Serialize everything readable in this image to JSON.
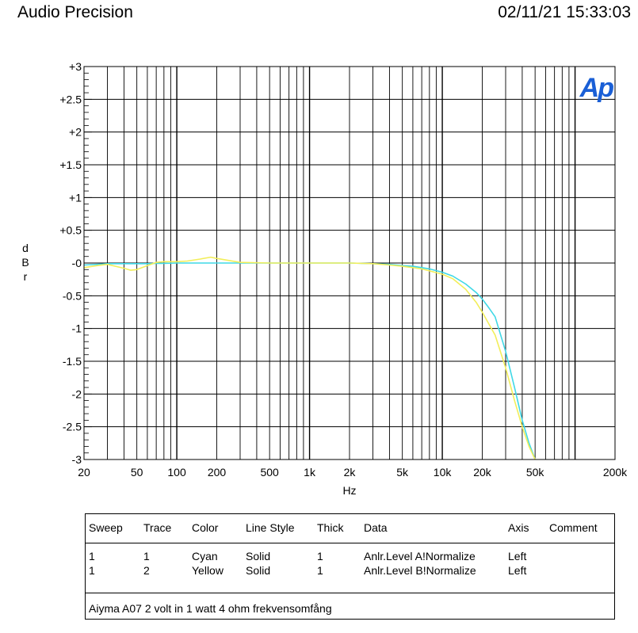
{
  "header": {
    "app_title": "Audio Precision",
    "timestamp": "02/11/21 15:33:03"
  },
  "logo_text": "Ap",
  "chart_data": {
    "type": "line",
    "xlabel": "Hz",
    "ylabel": "dBr",
    "x_scale": "log",
    "xlim": [
      20,
      200000
    ],
    "ylim": [
      -3,
      3
    ],
    "grid": true,
    "x_ticks": [
      {
        "value": 20,
        "label": "20"
      },
      {
        "value": 50,
        "label": "50"
      },
      {
        "value": 100,
        "label": "100"
      },
      {
        "value": 200,
        "label": "200"
      },
      {
        "value": 500,
        "label": "500"
      },
      {
        "value": 1000,
        "label": "1k"
      },
      {
        "value": 2000,
        "label": "2k"
      },
      {
        "value": 5000,
        "label": "5k"
      },
      {
        "value": 10000,
        "label": "10k"
      },
      {
        "value": 20000,
        "label": "20k"
      },
      {
        "value": 50000,
        "label": "50k"
      },
      {
        "value": 200000,
        "label": "200k"
      }
    ],
    "y_ticks": [
      {
        "value": 3,
        "label": "+3"
      },
      {
        "value": 2.5,
        "label": "+2.5"
      },
      {
        "value": 2,
        "label": "+2"
      },
      {
        "value": 1.5,
        "label": "+1.5"
      },
      {
        "value": 1,
        "label": "+1"
      },
      {
        "value": 0.5,
        "label": "+0.5"
      },
      {
        "value": 0,
        "label": "-0"
      },
      {
        "value": -0.5,
        "label": "-0.5"
      },
      {
        "value": -1,
        "label": "-1"
      },
      {
        "value": -1.5,
        "label": "-1.5"
      },
      {
        "value": -2,
        "label": "-2"
      },
      {
        "value": -2.5,
        "label": "-2.5"
      },
      {
        "value": -3,
        "label": "-3"
      }
    ],
    "series": [
      {
        "color": "#3FD8E6",
        "x": [
          20,
          25,
          30,
          40,
          50,
          60,
          70,
          80,
          100,
          150,
          200,
          300,
          500,
          1000,
          2000,
          3000,
          4000,
          5000,
          6000,
          7000,
          8000,
          10000,
          12000,
          15000,
          18000,
          20000,
          22000,
          25000,
          30000,
          35000,
          40000,
          45000,
          50000
        ],
        "y": [
          -0.03,
          -0.02,
          -0.01,
          -0.01,
          -0.01,
          -0.01,
          -0.005,
          -0.005,
          0,
          0,
          0,
          0,
          0,
          0,
          0,
          -0.01,
          -0.02,
          -0.04,
          -0.05,
          -0.07,
          -0.09,
          -0.14,
          -0.2,
          -0.32,
          -0.45,
          -0.55,
          -0.66,
          -0.82,
          -1.35,
          -1.9,
          -2.4,
          -2.75,
          -3.0
        ]
      },
      {
        "color": "#F2EE5A",
        "x": [
          20,
          25,
          30,
          40,
          45,
          50,
          60,
          70,
          80,
          100,
          120,
          150,
          180,
          200,
          300,
          500,
          1000,
          2000,
          3000,
          4000,
          5000,
          6000,
          7000,
          8000,
          10000,
          12000,
          15000,
          18000,
          20000,
          22000,
          25000,
          30000,
          35000,
          40000,
          45000,
          50000
        ],
        "y": [
          -0.07,
          -0.04,
          -0.02,
          -0.08,
          -0.11,
          -0.1,
          -0.04,
          0.01,
          0.02,
          0.02,
          0.03,
          0.06,
          0.09,
          0.07,
          0.01,
          0,
          0,
          0,
          -0.01,
          -0.03,
          -0.05,
          -0.07,
          -0.09,
          -0.12,
          -0.17,
          -0.24,
          -0.4,
          -0.6,
          -0.75,
          -0.9,
          -1.1,
          -1.6,
          -2.1,
          -2.5,
          -2.8,
          -3.0
        ]
      }
    ]
  },
  "legend": {
    "headers": [
      "Sweep",
      "Trace",
      "Color",
      "Line Style",
      "Thick",
      "Data",
      "Axis",
      "Comment"
    ],
    "rows": [
      {
        "sweep": "1",
        "trace": "1",
        "color": "Cyan",
        "style": "Solid",
        "thick": "1",
        "data": "Anlr.Level A!Normalize",
        "axis": "Left",
        "comment": ""
      },
      {
        "sweep": "1",
        "trace": "2",
        "color": "Yellow",
        "style": "Solid",
        "thick": "1",
        "data": "Anlr.Level B!Normalize",
        "axis": "Left",
        "comment": ""
      }
    ],
    "comment_text": "Aiyma A07 2 volt in 1 watt 4 ohm frekvensomfång"
  }
}
